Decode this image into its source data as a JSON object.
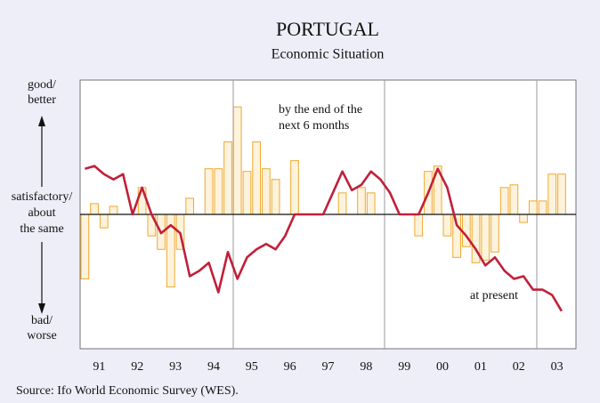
{
  "chart_data": {
    "type": "bar",
    "title": "PORTUGAL",
    "subtitle": "Economic Situation",
    "categories": [
      null,
      "91",
      null,
      null,
      null,
      "92",
      null,
      null,
      null,
      "93",
      null,
      null,
      null,
      "94",
      null,
      null,
      null,
      "95",
      null,
      null,
      null,
      "96",
      null,
      null,
      null,
      "97",
      null,
      null,
      null,
      "98",
      null,
      null,
      null,
      "99",
      null,
      null,
      null,
      "00",
      null,
      null,
      null,
      "01",
      null,
      null,
      null,
      "02",
      null,
      null,
      null,
      "03",
      null,
      null
    ],
    "series": [
      {
        "type": "bar",
        "color": "#f0a830",
        "values": [
          -2.4,
          0.4,
          -0.5,
          0.3,
          0,
          0,
          1.0,
          -0.8,
          -1.3,
          -2.7,
          -1.3,
          0.6,
          0,
          1.7,
          1.7,
          2.7,
          4.0,
          1.6,
          2.7,
          1.7,
          1.3,
          0,
          2.0,
          0,
          0,
          0,
          0,
          0.8,
          0,
          1.0,
          0.8,
          0,
          0,
          0,
          0,
          -0.8,
          1.6,
          1.8,
          -0.8,
          -1.6,
          -1.2,
          -1.8,
          -1.7,
          -1.4,
          1.0,
          1.1,
          -0.3,
          0.5,
          0.5,
          1.5,
          1.5,
          null
        ]
      },
      {
        "type": "line",
        "color": "#c0203a",
        "values": [
          1.7,
          1.8,
          1.5,
          1.3,
          1.5,
          0,
          1.0,
          0,
          -0.7,
          -0.4,
          -0.7,
          -2.3,
          -2.1,
          -1.8,
          -2.9,
          -1.4,
          -2.4,
          -1.6,
          -1.3,
          -1.1,
          -1.3,
          -0.8,
          0,
          0,
          0,
          0,
          0.8,
          1.6,
          0.9,
          1.1,
          1.6,
          1.3,
          0.8,
          0,
          0,
          0,
          0.8,
          1.7,
          1.0,
          -0.4,
          -0.8,
          -1.3,
          -1.9,
          -1.6,
          -2.1,
          -2.4,
          -2.3,
          -2.8,
          -2.8,
          -3.0,
          -3.6,
          null
        ]
      }
    ],
    "ylim": [
      -5,
      5
    ],
    "annotations": [
      "by the end of the",
      "next 6 months",
      "at present"
    ],
    "y_labels": [
      "good/",
      "better",
      "satisfactory/",
      "about",
      "the same",
      "bad/",
      "worse"
    ],
    "source": "Source: Ifo World Economic Survey (WES)."
  }
}
